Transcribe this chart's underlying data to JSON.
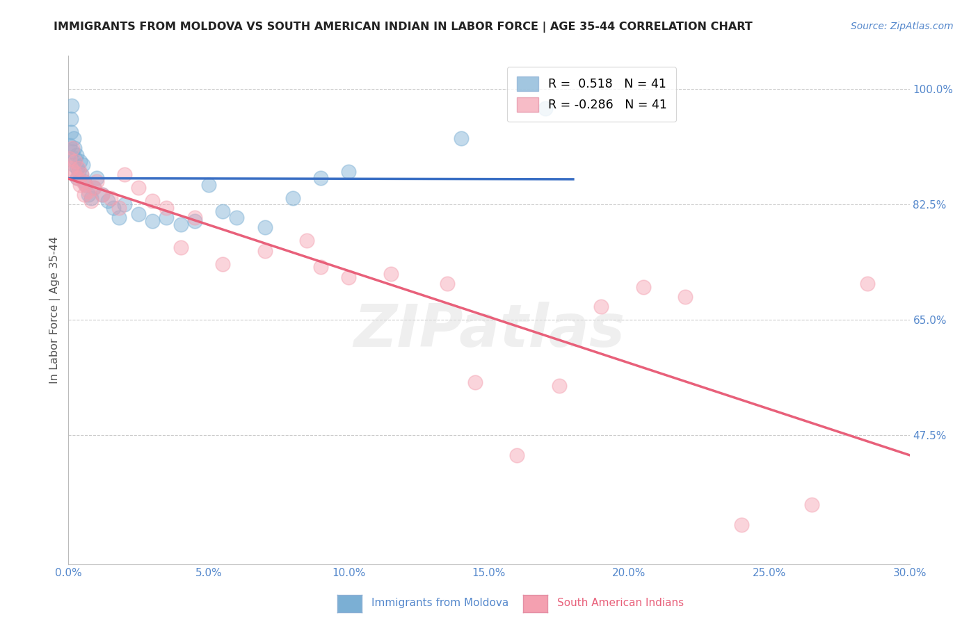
{
  "title": "IMMIGRANTS FROM MOLDOVA VS SOUTH AMERICAN INDIAN IN LABOR FORCE | AGE 35-44 CORRELATION CHART",
  "source": "Source: ZipAtlas.com",
  "ylabel": "In Labor Force | Age 35-44",
  "xlim": [
    0.0,
    30.0
  ],
  "ylim": [
    28.0,
    105.0
  ],
  "ytick_vals": [
    100.0,
    82.5,
    65.0,
    47.5
  ],
  "xtick_vals": [
    0.0,
    5.0,
    10.0,
    15.0,
    20.0,
    25.0,
    30.0
  ],
  "r_blue": 0.518,
  "n_blue": 41,
  "r_pink": -0.286,
  "n_pink": 41,
  "color_blue": "#7BAFD4",
  "color_pink": "#F4A0B0",
  "line_color_blue": "#3A6FC4",
  "line_color_pink": "#E8607A",
  "legend_label_blue": "Immigrants from Moldova",
  "legend_label_pink": "South American Indians",
  "blue_x": [
    0.05,
    0.08,
    0.1,
    0.12,
    0.15,
    0.18,
    0.2,
    0.22,
    0.25,
    0.28,
    0.3,
    0.32,
    0.35,
    0.4,
    0.45,
    0.5,
    0.55,
    0.6,
    0.7,
    0.8,
    0.9,
    1.0,
    1.2,
    1.4,
    1.6,
    1.8,
    2.0,
    2.5,
    3.0,
    3.5,
    4.0,
    4.5,
    5.0,
    5.5,
    6.0,
    7.0,
    8.0,
    9.0,
    10.0,
    14.0,
    17.0
  ],
  "blue_y": [
    91.5,
    93.5,
    95.5,
    97.5,
    90.5,
    92.5,
    88.5,
    91.0,
    89.5,
    90.0,
    88.0,
    86.5,
    87.5,
    89.0,
    87.0,
    88.5,
    86.0,
    85.5,
    84.0,
    83.5,
    85.0,
    86.5,
    84.0,
    83.0,
    82.0,
    80.5,
    82.5,
    81.0,
    80.0,
    80.5,
    79.5,
    80.0,
    85.5,
    81.5,
    80.5,
    79.0,
    83.5,
    86.5,
    87.5,
    92.5,
    97.0
  ],
  "pink_x": [
    0.05,
    0.1,
    0.15,
    0.2,
    0.25,
    0.3,
    0.35,
    0.4,
    0.45,
    0.5,
    0.55,
    0.6,
    0.7,
    0.8,
    0.9,
    1.0,
    1.2,
    1.5,
    1.8,
    2.0,
    2.5,
    3.0,
    3.5,
    4.0,
    4.5,
    5.5,
    7.0,
    8.5,
    9.0,
    10.0,
    11.5,
    13.5,
    14.5,
    16.0,
    17.5,
    19.0,
    20.5,
    22.0,
    24.0,
    26.5,
    28.5
  ],
  "pink_y": [
    89.5,
    88.0,
    91.0,
    87.5,
    89.0,
    86.5,
    88.0,
    85.5,
    87.0,
    86.0,
    84.0,
    85.5,
    84.5,
    83.0,
    85.0,
    86.0,
    84.0,
    83.5,
    82.0,
    87.0,
    85.0,
    83.0,
    82.0,
    76.0,
    80.5,
    73.5,
    75.5,
    77.0,
    73.0,
    71.5,
    72.0,
    70.5,
    55.5,
    44.5,
    55.0,
    67.0,
    70.0,
    68.5,
    34.0,
    37.0,
    70.5
  ],
  "watermark_text": "ZIPatlas",
  "background_color": "#FFFFFF",
  "grid_color": "#CCCCCC",
  "title_color": "#222222",
  "axis_label_color": "#555555",
  "tick_color": "#5588CC"
}
